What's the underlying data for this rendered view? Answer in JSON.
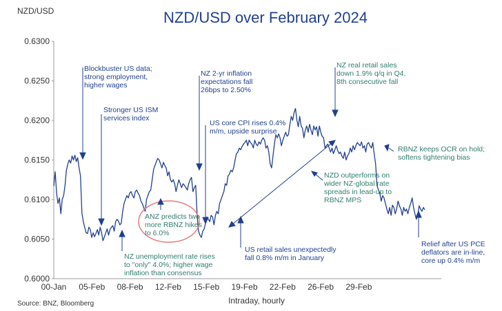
{
  "chart_data": {
    "type": "line",
    "title": "NZD/USD over February 2024",
    "ylabel": "NZD/USD",
    "xlabel": "Intraday,  hourly",
    "source": "Source: BNZ, Bloomberg",
    "ylim": [
      0.6,
      0.63
    ],
    "yticks": [
      "0.6000",
      "0.6050",
      "0.6100",
      "0.6150",
      "0.6200",
      "0.6250",
      "0.6300"
    ],
    "xticks": [
      "00-Jan",
      "05-Feb",
      "08-Feb",
      "12-Feb",
      "15-Feb",
      "19-Feb",
      "22-Feb",
      "26-Feb",
      "29-Feb"
    ],
    "grid": false,
    "colors": {
      "line": "#1f3f8f",
      "title": "#1f3f8f",
      "annotation": "#1f3f8f",
      "annotation_green": "#2e7d6e",
      "highlight_circle": "#e87a7a",
      "axis": "#999999"
    },
    "series": [
      {
        "values": [
          0.6117,
          0.6135,
          0.6108,
          0.6095,
          0.6102,
          0.6082,
          0.61,
          0.6105,
          0.6118,
          0.6137,
          0.6145,
          0.615,
          0.6146,
          0.6155,
          0.615,
          0.6156,
          0.6148,
          0.6153,
          0.614,
          0.613,
          0.6083,
          0.6072,
          0.6065,
          0.6058,
          0.6057,
          0.6065,
          0.6062,
          0.6052,
          0.6058,
          0.6053,
          0.6057,
          0.6062,
          0.6055,
          0.6065,
          0.6058,
          0.6048,
          0.6053,
          0.6058,
          0.6063,
          0.6055,
          0.6062,
          0.6065,
          0.6067,
          0.606,
          0.6072,
          0.6075,
          0.6073,
          0.6068,
          0.607,
          0.6085,
          0.6095,
          0.61,
          0.6105,
          0.6102,
          0.6108,
          0.611,
          0.6105,
          0.6102,
          0.611,
          0.6112,
          0.6108,
          0.6105,
          0.6098,
          0.6095,
          0.609,
          0.6085,
          0.61,
          0.6105,
          0.611,
          0.6112,
          0.6125,
          0.6138,
          0.6143,
          0.6148,
          0.6152,
          0.615,
          0.6145,
          0.614,
          0.6147,
          0.6143,
          0.614,
          0.613,
          0.6135,
          0.6125,
          0.6122,
          0.6125,
          0.612,
          0.611,
          0.6118,
          0.6125,
          0.612,
          0.6115,
          0.612,
          0.6118,
          0.6115,
          0.6112,
          0.612,
          0.6125,
          0.6128,
          0.611,
          0.6115,
          0.6118,
          0.608,
          0.606,
          0.6055,
          0.6052,
          0.606,
          0.6063,
          0.607,
          0.6078,
          0.6075,
          0.6072,
          0.608,
          0.6078,
          0.6068,
          0.608,
          0.6085,
          0.6082,
          0.6095,
          0.61,
          0.6105,
          0.611,
          0.612,
          0.6118,
          0.613,
          0.6132,
          0.6137,
          0.6135,
          0.614,
          0.615,
          0.6158,
          0.616,
          0.6165,
          0.6163,
          0.6167,
          0.617,
          0.6172,
          0.6175,
          0.6168,
          0.6175,
          0.6172,
          0.617,
          0.6165,
          0.6175,
          0.617,
          0.6168,
          0.6173,
          0.617,
          0.6175,
          0.6178,
          0.6175,
          0.6165,
          0.6168,
          0.616,
          0.6145,
          0.614,
          0.6155,
          0.617,
          0.6182,
          0.6178,
          0.6183,
          0.6178,
          0.6168,
          0.6175,
          0.618,
          0.6185,
          0.618,
          0.6182,
          0.6195,
          0.6205,
          0.62,
          0.621,
          0.6215,
          0.62,
          0.6192,
          0.6205,
          0.6193,
          0.619,
          0.6178,
          0.6188,
          0.6193,
          0.6185,
          0.6195,
          0.6188,
          0.6182,
          0.6193,
          0.6188,
          0.6192,
          0.618,
          0.6193,
          0.6185,
          0.618,
          0.6178,
          0.6165,
          0.6168,
          0.617,
          0.6165,
          0.616,
          0.6165,
          0.6158,
          0.6163,
          0.6168,
          0.6162,
          0.6158,
          0.616,
          0.6155,
          0.6152,
          0.616,
          0.615,
          0.6155,
          0.6158,
          0.6165,
          0.616,
          0.6168,
          0.6163,
          0.6168,
          0.6172,
          0.617,
          0.6168,
          0.6173,
          0.6165,
          0.6168,
          0.616,
          0.617,
          0.6172,
          0.6168,
          0.6165,
          0.6172,
          0.6158,
          0.6145,
          0.6118,
          0.6112,
          0.6108,
          0.6098,
          0.6105,
          0.6102,
          0.6095,
          0.6088,
          0.6082,
          0.609,
          0.608,
          0.6093,
          0.609,
          0.6082,
          0.6088,
          0.6098,
          0.6092,
          0.6088,
          0.608,
          0.609,
          0.6085,
          0.6088,
          0.6082,
          0.609,
          0.6095,
          0.6102,
          0.609,
          0.6082,
          0.6075,
          0.608,
          0.6092,
          0.6088,
          0.6085,
          0.609,
          0.6087
        ]
      }
    ],
    "annotations": [
      {
        "lines": [
          "Blockbuster US  data;",
          "strong employment,",
          "higher wages"
        ],
        "color": "navy"
      },
      {
        "lines": [
          "Stronger US ISM",
          "services index"
        ],
        "color": "navy"
      },
      {
        "lines": [
          "NZ 2-yr inflation",
          "expectations fall",
          "26bps to 2.50%"
        ],
        "color": "navy"
      },
      {
        "lines": [
          "US core CPI rises 0.4%",
          "m/m, upside surprise"
        ],
        "color": "navy"
      },
      {
        "lines": [
          "NZ real retail sales",
          "down 1.9% q/q in Q4,",
          "8th consecutive fall"
        ],
        "color": "green"
      },
      {
        "lines": [
          "RBNZ keeps OCR on hold;",
          "softens tightening bias"
        ],
        "color": "green"
      },
      {
        "lines": [
          "NZD outperforms on",
          "wider NZ-global  rate",
          "spreads in lead-up to",
          "RBNZ MPS"
        ],
        "color": "green"
      },
      {
        "lines": [
          "ANZ predicts two",
          "more RBNZ hikes",
          "to 6.0%"
        ],
        "color": "green"
      },
      {
        "lines": [
          "NZ unemployment rate rises",
          "to \"only\" 4.0%; higher wage",
          "inflation than consensus"
        ],
        "color": "green"
      },
      {
        "lines": [
          "US retail sales unexpectedly",
          "fall 0.8% m/m in January"
        ],
        "color": "navy"
      },
      {
        "lines": [
          "Relief after US PCE",
          "deflators are in-line,",
          "core up 0.4% m/m"
        ],
        "color": "navy"
      }
    ]
  }
}
